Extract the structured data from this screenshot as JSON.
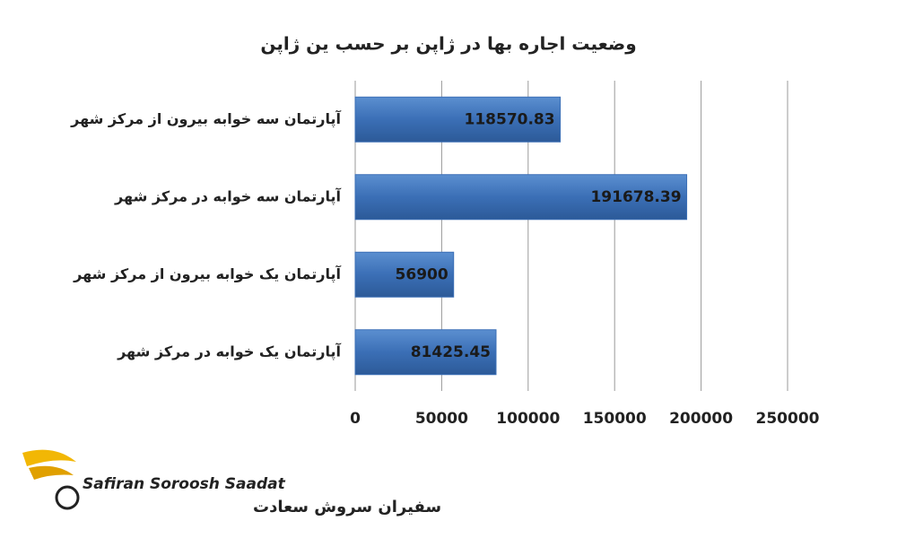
{
  "chart_data": {
    "type": "bar",
    "orientation": "horizontal",
    "title": "وضعیت اجاره بها در ژاپن بر حسب ین ژاپن",
    "categories": [
      "آپارتمان سه خوابه بیرون از مرکز شهر",
      "آپارتمان سه خوابه در مرکز شهر",
      "آپارتمان یک خوابه بیرون از مرکز شهر",
      "آپارتمان یک خوابه در مرکز شهر"
    ],
    "values": [
      118570.83,
      191678.39,
      56900,
      81425.45
    ],
    "color": "#3b6fb6",
    "xlim": [
      0,
      250000
    ],
    "xticks": [
      0,
      50000,
      100000,
      150000,
      200000,
      250000
    ],
    "grid": true
  },
  "logo": {
    "latin": "Safiran Soroosh Saadat",
    "persian": "سفیران سروش سعادت"
  }
}
